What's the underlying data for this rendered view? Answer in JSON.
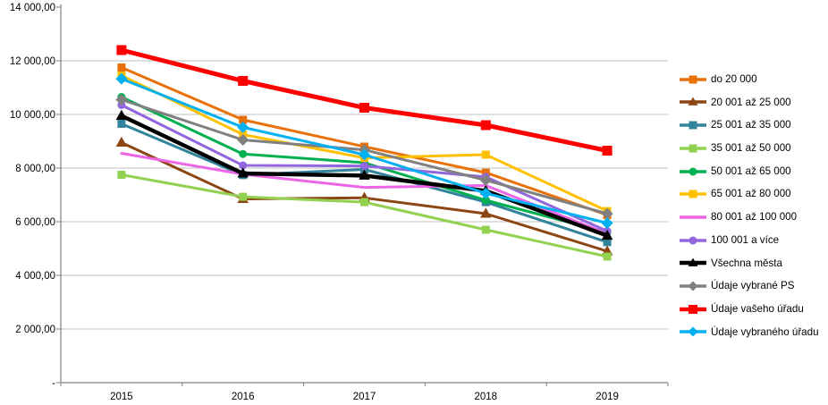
{
  "chart_data": {
    "type": "line",
    "x": [
      "2015",
      "2016",
      "2017",
      "2018",
      "2019"
    ],
    "ylim": [
      0,
      14000
    ],
    "grid": true,
    "legend_position": "right",
    "yticks": [
      {
        "value": 14000,
        "label": "14 000,00"
      },
      {
        "value": 12000,
        "label": "12 000,00"
      },
      {
        "value": 10000,
        "label": "10 000,00"
      },
      {
        "value": 8000,
        "label": "8 000,00"
      },
      {
        "value": 6000,
        "label": "6 000,00"
      },
      {
        "value": 4000,
        "label": "4 000,00"
      },
      {
        "value": 2000,
        "label": "2 000,00"
      },
      {
        "value": 0,
        "label": "-"
      }
    ],
    "series": [
      {
        "name": "do 20 000",
        "color": "#E8710A",
        "marker": "square",
        "width": 3,
        "values": [
          11750,
          9800,
          8800,
          7830,
          6250
        ]
      },
      {
        "name": "20 001 až 25 000",
        "color": "#8C4613",
        "marker": "triangle",
        "width": 3,
        "values": [
          8950,
          6850,
          6890,
          6300,
          4900
        ]
      },
      {
        "name": "25 001 až 35 000",
        "color": "#31849B",
        "marker": "square",
        "width": 3,
        "values": [
          9650,
          7740,
          7950,
          6730,
          5240
        ]
      },
      {
        "name": "35 001 až 50 000",
        "color": "#92D050",
        "marker": "square",
        "width": 3,
        "values": [
          7750,
          6930,
          6730,
          5700,
          4700
        ]
      },
      {
        "name": "50 001 až 65 000",
        "color": "#00B050",
        "marker": "circle",
        "width": 3,
        "values": [
          10650,
          8525,
          8200,
          6800,
          5600
        ]
      },
      {
        "name": "65 001 až 80 000",
        "color": "#FFC000",
        "marker": "square",
        "width": 3,
        "values": [
          11450,
          9250,
          8380,
          8500,
          6400
        ]
      },
      {
        "name": "80 001 až 100 000",
        "color": "#EE64E6",
        "marker": "none",
        "width": 3,
        "values": [
          8550,
          7770,
          7280,
          7350,
          5550
        ]
      },
      {
        "name": "100 001 a více",
        "color": "#9266DE",
        "marker": "circle",
        "width": 3,
        "values": [
          10350,
          8100,
          8080,
          7670,
          5650
        ]
      },
      {
        "name": "Všechna města",
        "color": "#000000",
        "marker": "triangle",
        "width": 4.5,
        "values": [
          9950,
          7800,
          7720,
          7150,
          5480
        ]
      },
      {
        "name": "Údaje vybrané PS",
        "color": "#808080",
        "marker": "diamond",
        "width": 3,
        "values": [
          10550,
          9050,
          8680,
          7550,
          6300
        ]
      },
      {
        "name": "Údaje vašeho úřadu",
        "color": "#FF0000",
        "marker": "square",
        "width": 5,
        "values": [
          12400,
          11250,
          10250,
          9600,
          8650
        ]
      },
      {
        "name": "Údaje vybraného úřadu",
        "color": "#00B0F0",
        "marker": "diamond",
        "width": 3,
        "values": [
          11330,
          9520,
          8500,
          7060,
          5950
        ]
      }
    ],
    "style": {
      "axis_color": "#808080",
      "grid_color": "#BFBFBF",
      "tick_label_color": "#000000"
    }
  }
}
